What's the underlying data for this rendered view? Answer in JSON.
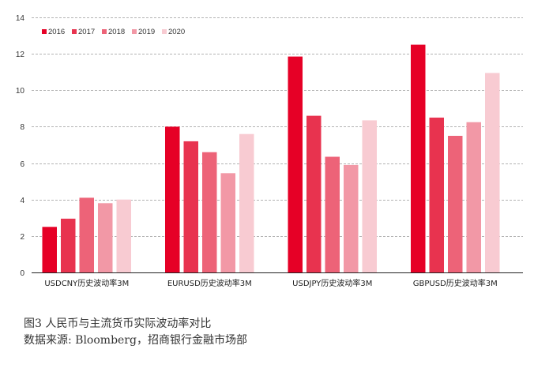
{
  "chart_data": {
    "type": "bar",
    "categories": [
      "USDCNY历史波动率3M",
      "EURUSD历史波动率3M",
      "USDJPY历史波动率3M",
      "GBPUSD历史波动率3M"
    ],
    "series": [
      {
        "name": "2016",
        "color": "#e60026",
        "values": [
          2.5,
          8.0,
          11.85,
          12.5
        ]
      },
      {
        "name": "2017",
        "color": "#e8334f",
        "values": [
          2.95,
          7.2,
          8.6,
          8.5
        ]
      },
      {
        "name": "2018",
        "color": "#ed6378",
        "values": [
          4.1,
          6.6,
          6.35,
          7.5
        ]
      },
      {
        "name": "2019",
        "color": "#f298a6",
        "values": [
          3.8,
          5.45,
          5.9,
          8.25
        ]
      },
      {
        "name": "2020",
        "color": "#f8cbd2",
        "values": [
          4.0,
          7.6,
          8.35,
          10.95
        ]
      }
    ],
    "ylim": [
      0,
      14
    ],
    "yticks": [
      "0",
      "2",
      "4",
      "6",
      "8",
      "10",
      "12",
      "14"
    ],
    "grid": true,
    "legend": "top-left"
  },
  "caption": {
    "title": "图3 人民币与主流货币实际波动率对比",
    "source": "数据来源: Bloomberg，招商银行金融市场部"
  }
}
